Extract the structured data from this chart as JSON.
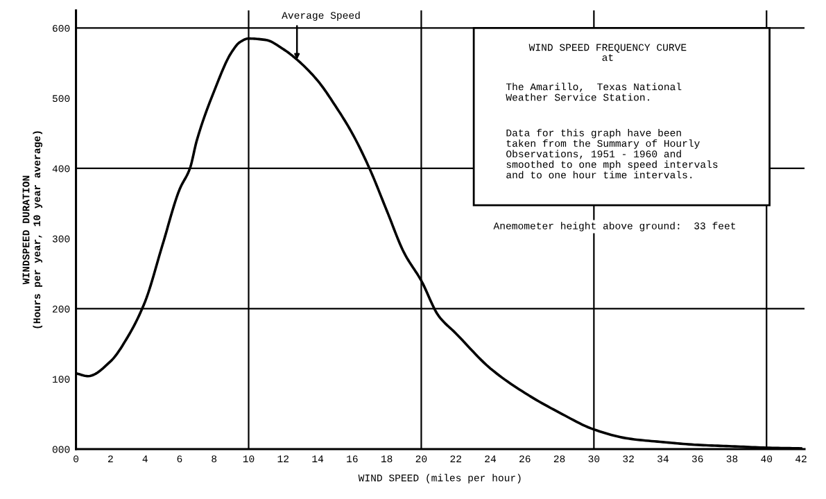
{
  "chart_data": {
    "type": "line",
    "title": "WIND SPEED FREQUENCY CURVE\nat",
    "xlabel": "WIND SPEED (miles per hour)",
    "ylabel": "WINDSPEED DURATION\n(Hours per year, 10 year average)",
    "x": [
      0,
      0.7,
      2,
      3,
      4,
      5,
      6,
      6.6,
      7,
      8,
      9,
      9.5,
      10,
      11,
      12,
      12.8,
      14,
      15,
      16,
      17,
      18,
      19,
      20,
      21,
      22,
      24,
      26,
      28,
      30,
      32,
      34,
      36,
      38,
      40,
      42
    ],
    "series": [
      {
        "color": "#000000",
        "values": [
          108,
          104,
          125,
          160,
          210,
          290,
          370,
          400,
          440,
          510,
          565,
          580,
          585,
          583,
          570,
          555,
          525,
          490,
          450,
          400,
          340,
          280,
          240,
          190,
          165,
          115,
          80,
          52,
          28,
          15,
          10,
          6,
          4,
          2,
          1
        ]
      }
    ],
    "xlim": [
      0,
      42.2
    ],
    "ylim": [
      0,
      625
    ],
    "xticks": [
      0,
      2,
      4,
      6,
      8,
      10,
      12,
      14,
      16,
      18,
      20,
      22,
      24,
      26,
      28,
      30,
      32,
      34,
      36,
      38,
      40,
      42
    ],
    "yticks": [
      {
        "value": 0,
        "label": "000"
      },
      100,
      200,
      300,
      400,
      500,
      600
    ],
    "ref_lines": [
      {
        "axis": "y",
        "value": 200
      },
      {
        "axis": "y",
        "value": 400
      },
      {
        "axis": "y",
        "value": 600
      },
      {
        "axis": "x",
        "value": 10
      },
      {
        "axis": "x",
        "value": 20
      },
      {
        "axis": "x",
        "value": 30
      },
      {
        "axis": "x",
        "value": 40
      }
    ],
    "annotations": [
      {
        "text": "Average Speed",
        "x": 12.8,
        "y": 555
      },
      "The Amarillo,  Texas National\nWeather Service Station.",
      "Data for this graph have been\ntaken from the Summary of Hourly\nObservations, 1951 - 1960 and\nsmoothed to one mph speed intervals\nand to one hour time intervals.",
      "Anemometer height above ground:  33 feet"
    ],
    "grid": false,
    "marker": "none",
    "line_style": "solid"
  }
}
